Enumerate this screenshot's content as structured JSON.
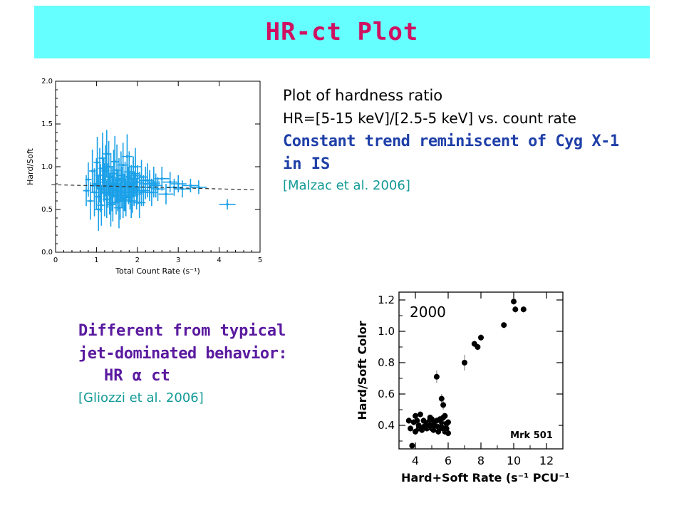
{
  "colors": {
    "title_bg": "#66ffff",
    "title": "#d01060",
    "accent_blue": "#1f3fa8",
    "accent_purple": "#5a1a9f",
    "citation": "#139a97",
    "points_blue": "#1aa0e8"
  },
  "title": "HR-ct Plot",
  "description": {
    "line1": "Plot of hardness ratio",
    "line2": "HR=[5-15 keV]/[2.5-5 keV] vs. count rate",
    "line3": "Constant trend  reminiscent of Cyg X-1",
    "line4": "in IS",
    "citation": "[Malzac et al.  2006]"
  },
  "comparison": {
    "line1": "Different from typical",
    "line2": "jet-dominated  behavior:",
    "line3": "HR α ct",
    "citation": "[Gliozzi et al.  2006]"
  },
  "chart_data": [
    {
      "type": "scatter",
      "title": "",
      "xlabel": "Total Count Rate (s⁻¹)",
      "ylabel": "Hard/Soft",
      "xlim": [
        0,
        5
      ],
      "ylim": [
        0,
        2
      ],
      "x_ticks": [
        "0",
        "1",
        "2",
        "3",
        "4",
        "5"
      ],
      "y_ticks": [
        "0.0",
        "0.5",
        "1.0",
        "1.5",
        "2.0"
      ],
      "trend_line": {
        "x": [
          -0.1,
          4.9
        ],
        "y": [
          0.79,
          0.73
        ]
      },
      "points": {
        "x": [
          0.75,
          0.8,
          0.85,
          0.9,
          0.95,
          1.0,
          1.02,
          1.05,
          1.08,
          1.1,
          1.12,
          1.15,
          1.18,
          1.2,
          1.22,
          1.25,
          1.28,
          1.3,
          1.32,
          1.35,
          1.38,
          1.4,
          1.42,
          1.45,
          1.48,
          1.5,
          1.52,
          1.55,
          1.58,
          1.6,
          1.62,
          1.65,
          1.68,
          1.7,
          1.72,
          1.75,
          1.78,
          1.8,
          1.82,
          1.85,
          1.88,
          1.9,
          1.92,
          1.95,
          1.98,
          2.0,
          2.05,
          2.1,
          2.15,
          2.2,
          2.25,
          2.3,
          2.35,
          2.4,
          2.45,
          2.5,
          2.6,
          2.7,
          2.8,
          2.9,
          3.0,
          3.1,
          3.3,
          3.5,
          4.2,
          1.05,
          1.15,
          1.25,
          1.35,
          1.45,
          1.55,
          1.65,
          1.75,
          1.85,
          1.95,
          2.05,
          1.1,
          1.3,
          1.5,
          1.7,
          1.9,
          2.1,
          2.3,
          0.95,
          1.2,
          1.4,
          1.6,
          1.8,
          2.0,
          2.2,
          2.4
        ],
        "y": [
          0.72,
          0.85,
          0.6,
          0.95,
          0.7,
          0.8,
          1.05,
          0.65,
          0.9,
          0.75,
          0.55,
          1.1,
          0.85,
          0.7,
          0.95,
          0.62,
          0.78,
          1.0,
          0.68,
          0.88,
          0.74,
          0.58,
          0.92,
          0.8,
          0.66,
          0.96,
          0.72,
          0.84,
          0.6,
          0.9,
          0.76,
          1.02,
          0.7,
          0.82,
          0.64,
          0.88,
          0.78,
          0.94,
          0.7,
          0.8,
          0.66,
          0.86,
          0.74,
          0.9,
          0.68,
          0.82,
          0.76,
          0.88,
          0.72,
          0.8,
          0.84,
          0.76,
          0.7,
          0.82,
          0.78,
          0.74,
          0.86,
          0.68,
          0.82,
          0.76,
          0.8,
          0.74,
          0.78,
          0.76,
          0.56,
          0.5,
          0.98,
          1.15,
          0.56,
          1.06,
          0.52,
          0.62,
          1.12,
          0.6,
          1.0,
          0.58,
          0.74,
          0.88,
          0.78,
          0.66,
          0.92,
          0.7,
          0.8,
          0.78,
          0.82,
          0.7,
          0.86,
          0.76,
          0.72,
          0.84,
          0.8
        ],
        "yerr": [
          0.18,
          0.2,
          0.22,
          0.25,
          0.28,
          0.3,
          0.3,
          0.25,
          0.32,
          0.28,
          0.24,
          0.3,
          0.26,
          0.28,
          0.3,
          0.22,
          0.26,
          0.3,
          0.24,
          0.28,
          0.26,
          0.22,
          0.28,
          0.25,
          0.22,
          0.3,
          0.24,
          0.26,
          0.22,
          0.28,
          0.24,
          0.26,
          0.22,
          0.24,
          0.22,
          0.24,
          0.22,
          0.24,
          0.2,
          0.22,
          0.2,
          0.22,
          0.2,
          0.22,
          0.18,
          0.2,
          0.18,
          0.2,
          0.18,
          0.18,
          0.2,
          0.16,
          0.16,
          0.18,
          0.14,
          0.14,
          0.14,
          0.12,
          0.12,
          0.1,
          0.1,
          0.1,
          0.08,
          0.08,
          0.06,
          0.25,
          0.3,
          0.28,
          0.26,
          0.3,
          0.24,
          0.22,
          0.26,
          0.2,
          0.22,
          0.18,
          0.2,
          0.22,
          0.2,
          0.18,
          0.2,
          0.16,
          0.16,
          0.2,
          0.22,
          0.2,
          0.2,
          0.18,
          0.16,
          0.16,
          0.14
        ],
        "xerr": [
          0.08,
          0.08,
          0.08,
          0.08,
          0.09,
          0.09,
          0.09,
          0.09,
          0.1,
          0.1,
          0.1,
          0.1,
          0.1,
          0.1,
          0.1,
          0.1,
          0.11,
          0.11,
          0.11,
          0.11,
          0.11,
          0.11,
          0.11,
          0.12,
          0.12,
          0.12,
          0.12,
          0.12,
          0.12,
          0.12,
          0.12,
          0.13,
          0.13,
          0.13,
          0.13,
          0.13,
          0.13,
          0.13,
          0.13,
          0.14,
          0.14,
          0.14,
          0.14,
          0.14,
          0.14,
          0.14,
          0.15,
          0.15,
          0.15,
          0.15,
          0.16,
          0.16,
          0.16,
          0.16,
          0.17,
          0.17,
          0.18,
          0.18,
          0.18,
          0.19,
          0.2,
          0.2,
          0.2,
          0.2,
          0.2,
          0.1,
          0.1,
          0.1,
          0.11,
          0.11,
          0.12,
          0.12,
          0.13,
          0.13,
          0.14,
          0.15,
          0.1,
          0.11,
          0.12,
          0.13,
          0.14,
          0.15,
          0.16,
          0.09,
          0.1,
          0.11,
          0.12,
          0.13,
          0.14,
          0.15,
          0.16
        ]
      }
    },
    {
      "type": "scatter",
      "title": "",
      "annotation": "2000",
      "label": "Mrk 501",
      "xlabel": "Hard+Soft Rate (s⁻¹ PCU⁻¹)",
      "ylabel": "Hard/Soft Color",
      "xlim": [
        3,
        13
      ],
      "ylim": [
        0.25,
        1.25
      ],
      "x_ticks": [
        "4",
        "6",
        "8",
        "10",
        "12"
      ],
      "y_ticks": [
        "0.4",
        "0.6",
        "0.8",
        "1.0",
        "1.2"
      ],
      "points": {
        "x": [
          3.6,
          3.7,
          3.8,
          3.9,
          4.0,
          4.1,
          4.2,
          4.3,
          4.4,
          4.5,
          4.6,
          4.7,
          4.8,
          4.9,
          5.0,
          5.1,
          5.2,
          5.3,
          5.4,
          5.5,
          5.6,
          5.7,
          5.8,
          5.9,
          6.0,
          5.6,
          5.7,
          5.8,
          5.5,
          5.6,
          5.9,
          6.0,
          4.0,
          4.2,
          4.5,
          4.8,
          5.1,
          5.4,
          5.0,
          5.7,
          7.0,
          7.6,
          7.8,
          8.0,
          9.4,
          10.0,
          10.1,
          10.6,
          5.3,
          5.0,
          4.9
        ],
        "y": [
          0.43,
          0.38,
          0.27,
          0.42,
          0.46,
          0.43,
          0.38,
          0.47,
          0.37,
          0.39,
          0.4,
          0.38,
          0.42,
          0.44,
          0.38,
          0.41,
          0.4,
          0.43,
          0.39,
          0.38,
          0.42,
          0.45,
          0.36,
          0.41,
          0.35,
          0.57,
          0.53,
          0.46,
          0.44,
          0.39,
          0.38,
          0.42,
          0.36,
          0.4,
          0.43,
          0.4,
          0.37,
          0.36,
          0.44,
          0.38,
          0.8,
          0.92,
          0.9,
          0.96,
          1.04,
          1.19,
          1.14,
          1.14,
          0.71,
          0.4,
          0.45
        ],
        "yerr": [
          0.02,
          0.02,
          0.02,
          0.02,
          0.02,
          0.02,
          0.02,
          0.02,
          0.02,
          0.02,
          0.02,
          0.02,
          0.02,
          0.02,
          0.02,
          0.02,
          0.02,
          0.02,
          0.02,
          0.02,
          0.02,
          0.03,
          0.02,
          0.02,
          0.02,
          0.03,
          0.03,
          0.02,
          0.02,
          0.02,
          0.02,
          0.02,
          0.02,
          0.02,
          0.02,
          0.02,
          0.02,
          0.02,
          0.02,
          0.02,
          0.05,
          0.02,
          0.02,
          0.02,
          0.02,
          0.02,
          0.02,
          0.02,
          0.04,
          0.02,
          0.02
        ]
      }
    }
  ]
}
